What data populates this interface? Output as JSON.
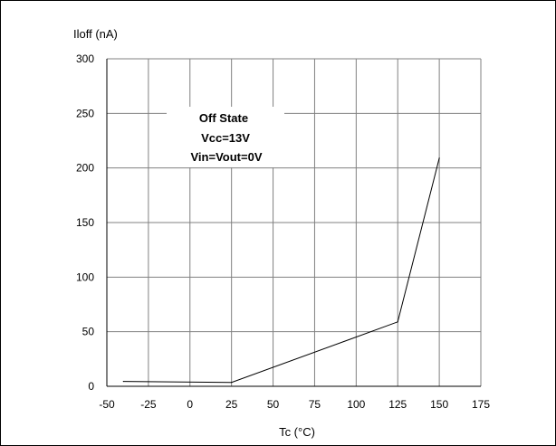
{
  "chart_data": {
    "type": "line",
    "ylabel": "Iloff (nA)",
    "xlabel": "Tc (°C)",
    "xlim": [
      -50,
      175
    ],
    "ylim": [
      0,
      300
    ],
    "xticks": [
      -50,
      -25,
      0,
      25,
      50,
      75,
      100,
      125,
      150,
      175
    ],
    "yticks": [
      0,
      50,
      100,
      150,
      200,
      250,
      300
    ],
    "grid": true,
    "annotation": [
      "Off State",
      "Vcc=13V",
      "Vin=Vout=0V"
    ],
    "series": [
      {
        "x": [
          -40,
          25,
          125,
          150
        ],
        "y": [
          4.5,
          3.5,
          59,
          209
        ]
      }
    ],
    "colors": {
      "line": "#000000",
      "grid": "#808080",
      "axis": "#000000"
    }
  }
}
